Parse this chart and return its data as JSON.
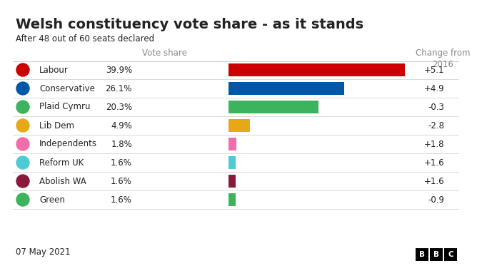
{
  "title": "Welsh constituency vote share - as it stands",
  "subtitle": "After 48 out of 60 seats declared",
  "col_header_votes": "Vote share",
  "col_header_change": "Change from\n2016",
  "date": "07 May 2021",
  "parties": [
    "Labour",
    "Conservative",
    "Plaid Cymru",
    "Lib Dem",
    "Independents",
    "Reform UK",
    "Abolish WA",
    "Green"
  ],
  "values": [
    39.9,
    26.1,
    20.3,
    4.9,
    1.8,
    1.6,
    1.6,
    1.6
  ],
  "labels": [
    "39.9%",
    "26.1%",
    "20.3%",
    "4.9%",
    "1.8%",
    "1.6%",
    "1.6%",
    "1.6%"
  ],
  "changes": [
    "+5.1",
    "+4.9",
    "-0.3",
    "-2.8",
    "+1.8",
    "+1.6",
    "+1.6",
    "-0.9"
  ],
  "bar_colors": [
    "#cc0000",
    "#0057a8",
    "#3db35e",
    "#e6a817",
    "#f06eaa",
    "#4ecad4",
    "#8b1a3a",
    "#3db35e"
  ],
  "icon_colors": [
    "#cc0000",
    "#0057a8",
    "#3db35e",
    "#e6a817",
    "#f06eaa",
    "#4ecad4",
    "#8b1a3a",
    "#3db35e"
  ],
  "background_color": "#ffffff",
  "title_fontsize": 14,
  "subtitle_fontsize": 8.5,
  "label_fontsize": 8.5,
  "change_fontsize": 8.5,
  "party_fontsize": 8.5,
  "divider_color": "#cccccc",
  "text_color": "#222222",
  "header_color": "#888888",
  "max_bar_val": 42
}
